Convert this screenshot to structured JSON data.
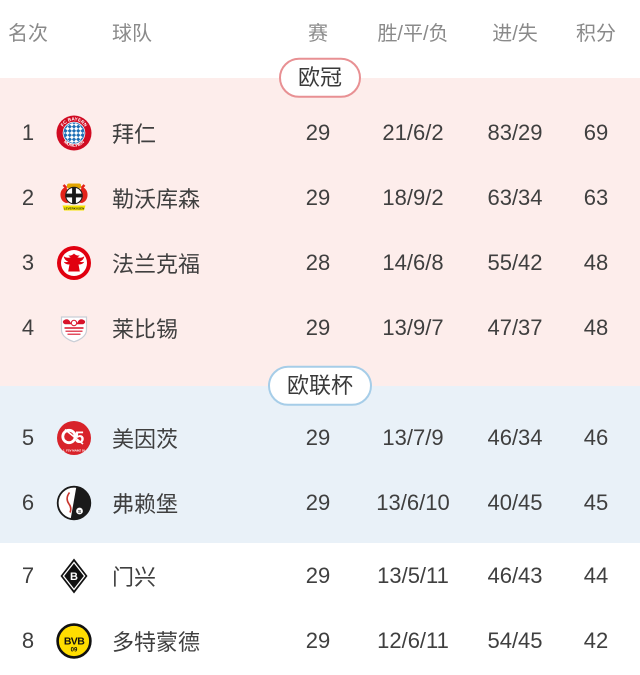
{
  "page": {
    "background": "#ffffff"
  },
  "colors": {
    "header_text": "#8a8a8a",
    "row_text": "#3f3f3f",
    "cl_background": "#fdedeb",
    "cl_badge_border": "#e89093",
    "el_background": "#e9f1f8",
    "el_badge_border": "#a6cde8"
  },
  "table": {
    "headers": {
      "rank": "名次",
      "team": "球队",
      "played": "赛",
      "wdl": "胜/平/负",
      "goals": "进/失",
      "points": "积分"
    },
    "sections": [
      {
        "style": "cl",
        "badge": "欧冠",
        "badge_border": "#e89093",
        "background": "#fdedeb",
        "rows": [
          {
            "rank": "1",
            "team": "拜仁",
            "logo": "bayern",
            "logo_icon": "bayern-crest-icon",
            "played": "29",
            "wdl": "21/6/2",
            "goals": "83/29",
            "points": "69"
          },
          {
            "rank": "2",
            "team": "勒沃库森",
            "logo": "leverkusen",
            "logo_icon": "leverkusen-crest-icon",
            "played": "29",
            "wdl": "18/9/2",
            "goals": "63/34",
            "points": "63"
          },
          {
            "rank": "3",
            "team": "法兰克福",
            "logo": "frankfurt",
            "logo_icon": "frankfurt-crest-icon",
            "played": "28",
            "wdl": "14/6/8",
            "goals": "55/42",
            "points": "48"
          },
          {
            "rank": "4",
            "team": "莱比锡",
            "logo": "leipzig",
            "logo_icon": "leipzig-crest-icon",
            "played": "29",
            "wdl": "13/9/7",
            "goals": "47/37",
            "points": "48"
          }
        ]
      },
      {
        "style": "el",
        "badge": "欧联杯",
        "badge_border": "#a6cde8",
        "background": "#e9f1f8",
        "rows": [
          {
            "rank": "5",
            "team": "美因茨",
            "logo": "mainz",
            "logo_icon": "mainz-crest-icon",
            "played": "29",
            "wdl": "13/7/9",
            "goals": "46/34",
            "points": "46"
          },
          {
            "rank": "6",
            "team": "弗赖堡",
            "logo": "freiburg",
            "logo_icon": "freiburg-crest-icon",
            "played": "29",
            "wdl": "13/6/10",
            "goals": "40/45",
            "points": "45"
          }
        ]
      },
      {
        "style": "plain",
        "badge": "",
        "badge_border": "",
        "background": "#ffffff",
        "rows": [
          {
            "rank": "7",
            "team": "门兴",
            "logo": "gladbach",
            "logo_icon": "gladbach-crest-icon",
            "played": "29",
            "wdl": "13/5/11",
            "goals": "46/43",
            "points": "44"
          },
          {
            "rank": "8",
            "team": "多特蒙德",
            "logo": "dortmund",
            "logo_icon": "dortmund-crest-icon",
            "played": "29",
            "wdl": "12/6/11",
            "goals": "54/45",
            "points": "42"
          }
        ]
      }
    ]
  }
}
